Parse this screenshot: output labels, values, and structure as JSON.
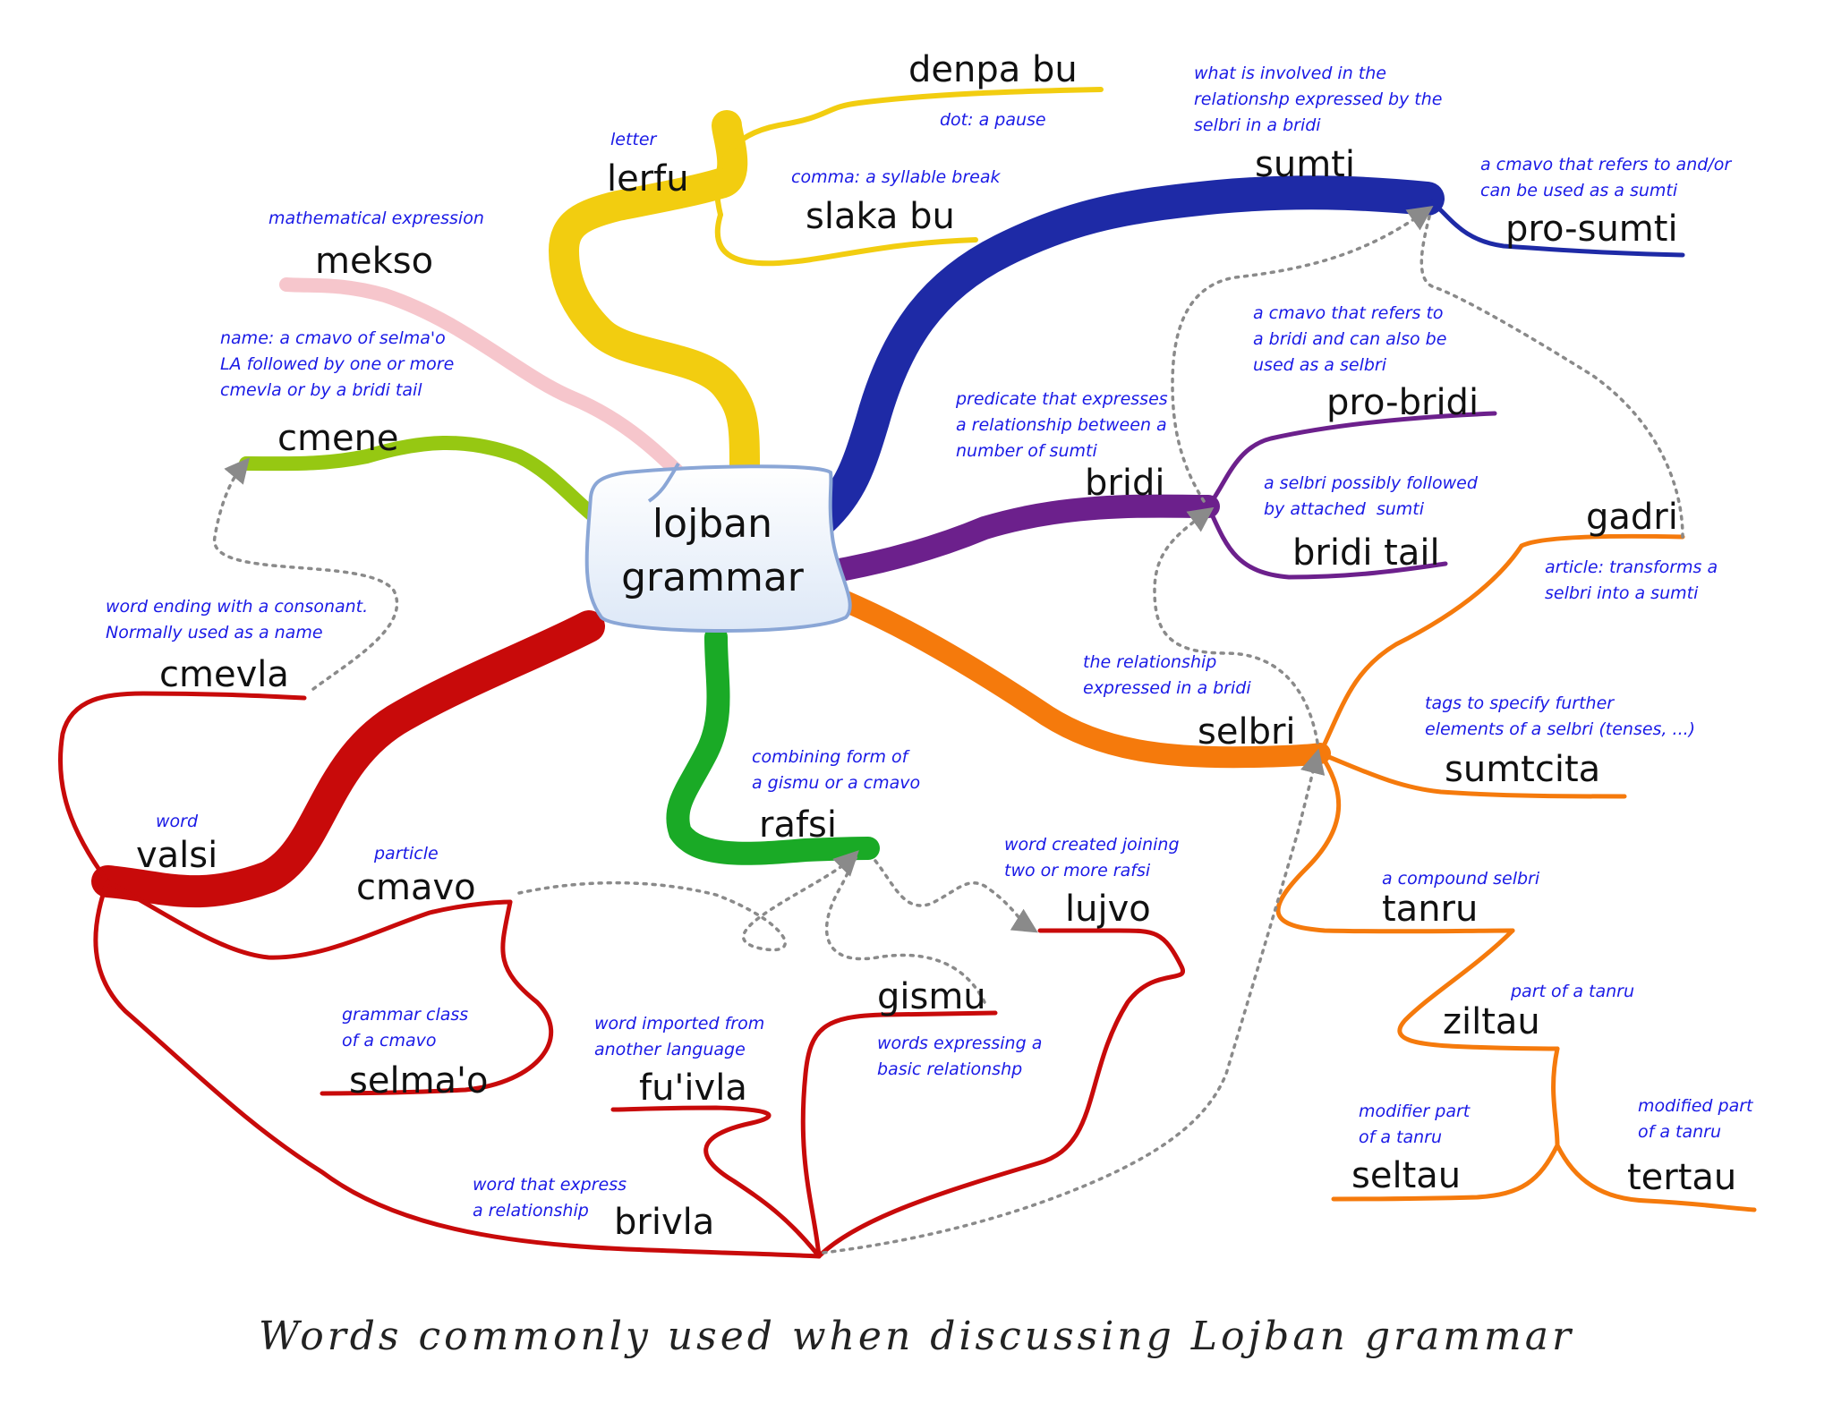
{
  "center": {
    "label": "lojban\ngrammar"
  },
  "caption": "Words commonly used when discussing Lojban grammar",
  "colors": {
    "yellow": "#f2cd10",
    "pink": "#f6c6cc",
    "green_light": "#96c812",
    "blue": "#1e2aa6",
    "purple": "#6c208c",
    "orange": "#f57a0c",
    "red": "#c80a0a",
    "green": "#1aaa26",
    "definition_text": "#1a1ae6",
    "connector": "#8a8a8a"
  },
  "nodes": {
    "lerfu": {
      "term": "lerfu",
      "def": "letter"
    },
    "denpa_bu": {
      "term": "denpa bu",
      "def": "dot: a pause"
    },
    "slaka_bu": {
      "term": "slaka bu",
      "def": "comma: a syllable break"
    },
    "mekso": {
      "term": "mekso",
      "def": "mathematical expression"
    },
    "cmene": {
      "term": "cmene",
      "def": "name: a cmavo of selma'o\nLA followed by one or more\ncmevla or by a bridi tail"
    },
    "cmevla": {
      "term": "cmevla",
      "def": "word ending with a consonant.\nNormally used as a name"
    },
    "valsi": {
      "term": "valsi",
      "def": "word"
    },
    "cmavo": {
      "term": "cmavo",
      "def": "particle"
    },
    "selmao": {
      "term": "selma'o",
      "def": "grammar class\nof a cmavo"
    },
    "fuivla": {
      "term": "fu'ivla",
      "def": "word imported from\nanother language"
    },
    "brivla": {
      "term": "brivla",
      "def": "word that express\na relationship"
    },
    "gismu": {
      "term": "gismu",
      "def": "words expressing a\nbasic relationshp"
    },
    "lujvo": {
      "term": "lujvo",
      "def": "word created joining\ntwo or more rafsi"
    },
    "rafsi": {
      "term": "rafsi",
      "def": "combining form of\na gismu or a cmavo"
    },
    "sumti": {
      "term": "sumti",
      "def": "what is involved in the\nrelationshp expressed by the\nselbri in a bridi"
    },
    "pro_sumti": {
      "term": "pro-sumti",
      "def": "a cmavo that refers to and/or\ncan be used as a sumti"
    },
    "bridi": {
      "term": "bridi",
      "def": "predicate that expresses\na relationship between a\nnumber of sumti"
    },
    "pro_bridi": {
      "term": "pro-bridi",
      "def": "a cmavo that refers to\na bridi and can also be\nused as a selbri"
    },
    "bridi_tail": {
      "term": "bridi tail",
      "def": "a selbri possibly followed\nby attached  sumti"
    },
    "gadri": {
      "term": "gadri",
      "def": "article: transforms a\nselbri into a sumti"
    },
    "selbri": {
      "term": "selbri",
      "def": "the relationship\nexpressed in a bridi"
    },
    "sumtcita": {
      "term": "sumtcita",
      "def": "tags to specify further\nelements of a selbri (tenses, ...)"
    },
    "tanru": {
      "term": "tanru",
      "def": "a compound selbri"
    },
    "ziltau": {
      "term": "ziltau",
      "def": "part of a tanru"
    },
    "seltau": {
      "term": "seltau",
      "def": "modifier part\nof a tanru"
    },
    "tertau": {
      "term": "tertau",
      "def": "modified part\nof a tanru"
    }
  }
}
